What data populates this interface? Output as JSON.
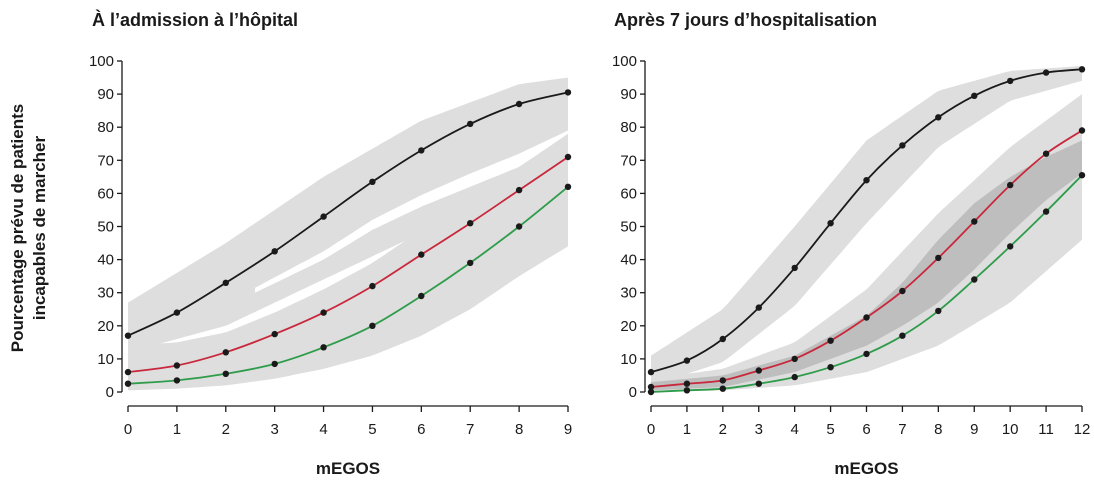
{
  "ylabel_line1": "Pourcentage prévu de patients",
  "ylabel_line2": "incapables de marcher",
  "colors": {
    "black_curve": "#1a1a1a",
    "red_curve": "#c8283c",
    "green_curve": "#2e9c4a",
    "light_band": "#dedede",
    "dark_band": "#bebebe",
    "white_band": "#ffffff"
  },
  "chart_data": [
    {
      "type": "line",
      "title": "À l’admission à l’hôpital",
      "xlabel": "mEGOS",
      "ylabel": "Pourcentage prévu de patients incapables de marcher",
      "x": [
        0,
        1,
        2,
        3,
        4,
        5,
        6,
        7,
        8,
        9
      ],
      "xlim": [
        0,
        9
      ],
      "ylim": [
        0,
        100
      ],
      "yticks": [
        0,
        10,
        20,
        30,
        40,
        50,
        60,
        70,
        80,
        90,
        100
      ],
      "series": [
        {
          "color": "black",
          "values": [
            17,
            24,
            33,
            42.5,
            53,
            63.5,
            73,
            81,
            87,
            90.5
          ]
        },
        {
          "color": "red",
          "values": [
            6,
            8,
            12,
            17.5,
            24,
            32,
            41.5,
            51,
            61,
            71
          ]
        },
        {
          "color": "green",
          "values": [
            2.5,
            3.5,
            5.5,
            8.5,
            13.5,
            20,
            29,
            39,
            50,
            62
          ]
        }
      ]
    },
    {
      "type": "line",
      "title": "Après 7 jours d’hospitalisation",
      "xlabel": "mEGOS",
      "ylabel": "Pourcentage prévu de patients incapables de marcher",
      "x": [
        0,
        1,
        2,
        3,
        4,
        5,
        6,
        7,
        8,
        9,
        10,
        11,
        12
      ],
      "xlim": [
        0,
        12
      ],
      "ylim": [
        0,
        100
      ],
      "yticks": [
        0,
        10,
        20,
        30,
        40,
        50,
        60,
        70,
        80,
        90,
        100
      ],
      "series": [
        {
          "color": "black",
          "values": [
            6,
            9.5,
            16,
            25.5,
            37.5,
            51,
            64,
            74.5,
            83,
            89.5,
            94,
            96.5,
            97.5
          ]
        },
        {
          "color": "red",
          "values": [
            1.5,
            2.5,
            3.5,
            6.5,
            10,
            15.5,
            22.5,
            30.5,
            40.5,
            51.5,
            62.5,
            72,
            79
          ]
        },
        {
          "color": "green",
          "values": [
            0,
            0.5,
            1,
            2.5,
            4.5,
            7.5,
            11.5,
            17,
            24.5,
            34,
            44,
            54.5,
            65.5
          ]
        }
      ]
    }
  ]
}
